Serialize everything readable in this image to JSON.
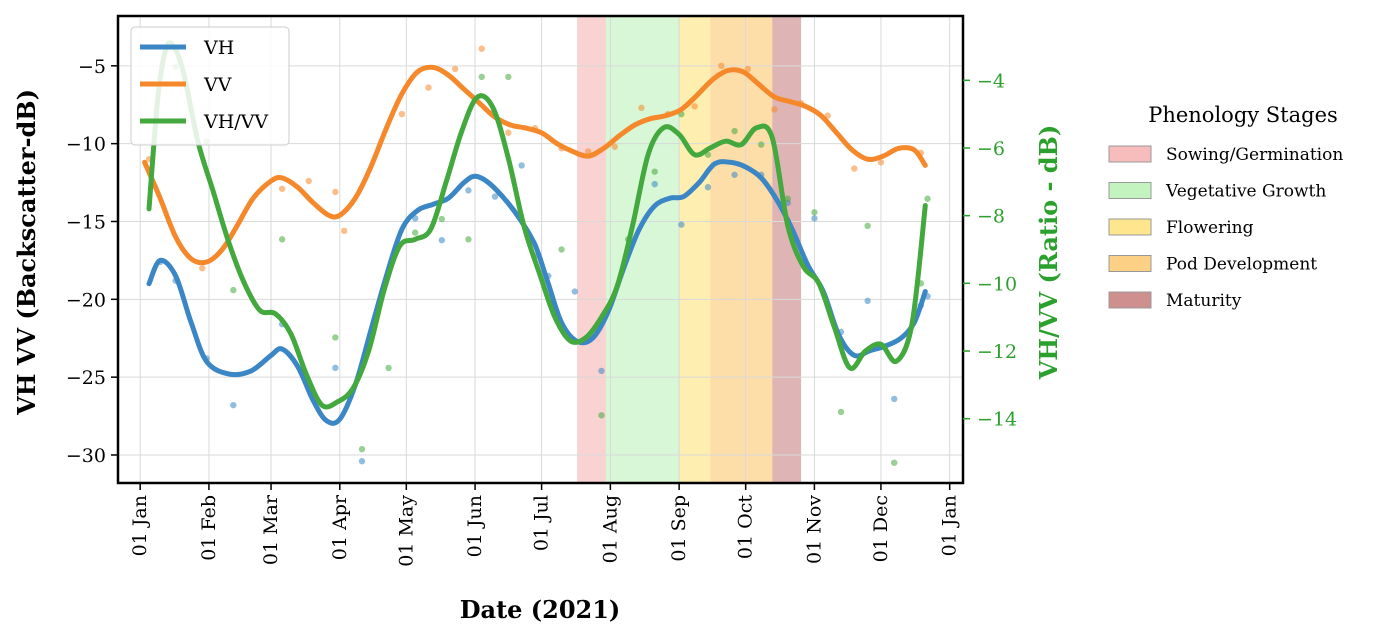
{
  "chart_data": {
    "type": "line",
    "xlabel": "Date (2021)",
    "ylabel_left": "VH VV (Backscatter-dB)",
    "ylabel_right": "VH/VV (Ratio - dB)",
    "x_tick_labels": [
      "01 Jan",
      "01 Feb",
      "01 Mar",
      "01 Apr",
      "01 May",
      "01 Jun",
      "01 Jul",
      "01 Aug",
      "01 Sep",
      "01 Oct",
      "01 Nov",
      "01 Dec",
      "01 Jan"
    ],
    "x_tick_dates": [
      "2021-01-01",
      "2021-02-01",
      "2021-03-01",
      "2021-04-01",
      "2021-05-01",
      "2021-06-01",
      "2021-07-01",
      "2021-08-01",
      "2021-09-01",
      "2021-10-01",
      "2021-11-01",
      "2021-12-01",
      "2022-01-01"
    ],
    "xlim": [
      "2020-12-22",
      "2022-01-07"
    ],
    "ylim_left": [
      -31.8,
      -1.8
    ],
    "yticks_left": [
      -30,
      -25,
      -20,
      -15,
      -10,
      -5
    ],
    "ylim_right": [
      -15.9,
      -2.1
    ],
    "yticks_right": [
      -14,
      -12,
      -10,
      -8,
      -6,
      -4
    ],
    "grid": true,
    "legend_position": "top-left",
    "series": [
      {
        "name": "VH",
        "axis": "left",
        "color": "#3b86c4",
        "smooth": [
          [
            "2021-01-05",
            -19.0
          ],
          [
            "2021-01-10",
            -17.5
          ],
          [
            "2021-01-17",
            -18.5
          ],
          [
            "2021-01-24",
            -21.5
          ],
          [
            "2021-01-31",
            -24.0
          ],
          [
            "2021-02-10",
            -24.8
          ],
          [
            "2021-02-20",
            -24.6
          ],
          [
            "2021-03-01",
            -23.6
          ],
          [
            "2021-03-06",
            -23.2
          ],
          [
            "2021-03-13",
            -24.3
          ],
          [
            "2021-03-20",
            -26.5
          ],
          [
            "2021-03-26",
            -27.8
          ],
          [
            "2021-04-01",
            -27.7
          ],
          [
            "2021-04-08",
            -25.5
          ],
          [
            "2021-04-15",
            -22.0
          ],
          [
            "2021-04-22",
            -18.5
          ],
          [
            "2021-04-29",
            -15.5
          ],
          [
            "2021-05-06",
            -14.3
          ],
          [
            "2021-05-13",
            -13.9
          ],
          [
            "2021-05-20",
            -13.5
          ],
          [
            "2021-05-27",
            -12.5
          ],
          [
            "2021-06-01",
            -12.1
          ],
          [
            "2021-06-07",
            -12.5
          ],
          [
            "2021-06-14",
            -13.5
          ],
          [
            "2021-06-21",
            -14.8
          ],
          [
            "2021-06-28",
            -16.5
          ],
          [
            "2021-07-04",
            -19.0
          ],
          [
            "2021-07-10",
            -21.5
          ],
          [
            "2021-07-17",
            -22.7
          ],
          [
            "2021-07-24",
            -22.5
          ],
          [
            "2021-07-31",
            -20.8
          ],
          [
            "2021-08-07",
            -18.0
          ],
          [
            "2021-08-14",
            -15.5
          ],
          [
            "2021-08-21",
            -14.0
          ],
          [
            "2021-08-28",
            -13.5
          ],
          [
            "2021-09-03",
            -13.4
          ],
          [
            "2021-09-10",
            -12.5
          ],
          [
            "2021-09-17",
            -11.3
          ],
          [
            "2021-09-24",
            -11.2
          ],
          [
            "2021-10-01",
            -11.5
          ],
          [
            "2021-10-08",
            -12.2
          ],
          [
            "2021-10-15",
            -13.6
          ],
          [
            "2021-10-22",
            -15.5
          ],
          [
            "2021-10-29",
            -17.8
          ],
          [
            "2021-11-05",
            -19.5
          ],
          [
            "2021-11-12",
            -22.3
          ],
          [
            "2021-11-19",
            -23.6
          ],
          [
            "2021-11-26",
            -23.3
          ],
          [
            "2021-12-03",
            -23.0
          ],
          [
            "2021-12-10",
            -22.5
          ],
          [
            "2021-12-16",
            -21.5
          ],
          [
            "2021-12-21",
            -19.5
          ]
        ],
        "points": [
          [
            "2021-01-10",
            -17.6
          ],
          [
            "2021-01-17",
            -18.8
          ],
          [
            "2021-01-31",
            -23.8
          ],
          [
            "2021-02-12",
            -26.8
          ],
          [
            "2021-03-06",
            -21.6
          ],
          [
            "2021-03-18",
            -25.6
          ],
          [
            "2021-03-30",
            -24.4
          ],
          [
            "2021-04-11",
            -30.4
          ],
          [
            "2021-05-05",
            -14.8
          ],
          [
            "2021-05-17",
            -16.2
          ],
          [
            "2021-05-29",
            -13.0
          ],
          [
            "2021-06-10",
            -13.4
          ],
          [
            "2021-06-22",
            -11.4
          ],
          [
            "2021-07-04",
            -18.5
          ],
          [
            "2021-07-16",
            -19.5
          ],
          [
            "2021-07-28",
            -24.6
          ],
          [
            "2021-08-09",
            -17.0
          ],
          [
            "2021-08-21",
            -12.6
          ],
          [
            "2021-09-02",
            -15.2
          ],
          [
            "2021-09-14",
            -12.8
          ],
          [
            "2021-09-26",
            -12.0
          ],
          [
            "2021-10-08",
            -12.0
          ],
          [
            "2021-10-20",
            -13.8
          ],
          [
            "2021-11-01",
            -14.8
          ],
          [
            "2021-11-13",
            -22.1
          ],
          [
            "2021-11-25",
            -20.1
          ],
          [
            "2021-12-07",
            -26.4
          ],
          [
            "2021-12-19",
            -20.4
          ],
          [
            "2021-12-22",
            -19.8
          ]
        ]
      },
      {
        "name": "VV",
        "axis": "left",
        "color": "#f5882a",
        "smooth": [
          [
            "2021-01-03",
            -11.2
          ],
          [
            "2021-01-10",
            -13.5
          ],
          [
            "2021-01-17",
            -16.0
          ],
          [
            "2021-01-24",
            -17.4
          ],
          [
            "2021-01-31",
            -17.6
          ],
          [
            "2021-02-07",
            -16.8
          ],
          [
            "2021-02-14",
            -15.2
          ],
          [
            "2021-02-21",
            -13.5
          ],
          [
            "2021-03-01",
            -12.4
          ],
          [
            "2021-03-06",
            -12.2
          ],
          [
            "2021-03-13",
            -12.8
          ],
          [
            "2021-03-20",
            -13.8
          ],
          [
            "2021-03-27",
            -14.6
          ],
          [
            "2021-04-01",
            -14.6
          ],
          [
            "2021-04-08",
            -13.5
          ],
          [
            "2021-04-15",
            -11.5
          ],
          [
            "2021-04-22",
            -9.0
          ],
          [
            "2021-04-29",
            -6.8
          ],
          [
            "2021-05-06",
            -5.4
          ],
          [
            "2021-05-13",
            -5.1
          ],
          [
            "2021-05-20",
            -5.6
          ],
          [
            "2021-05-27",
            -6.5
          ],
          [
            "2021-06-03",
            -7.4
          ],
          [
            "2021-06-10",
            -8.3
          ],
          [
            "2021-06-17",
            -8.8
          ],
          [
            "2021-06-24",
            -9.0
          ],
          [
            "2021-07-01",
            -9.3
          ],
          [
            "2021-07-08",
            -10.0
          ],
          [
            "2021-07-15",
            -10.5
          ],
          [
            "2021-07-22",
            -10.8
          ],
          [
            "2021-07-29",
            -10.3
          ],
          [
            "2021-08-05",
            -9.5
          ],
          [
            "2021-08-12",
            -8.8
          ],
          [
            "2021-08-19",
            -8.4
          ],
          [
            "2021-08-26",
            -8.2
          ],
          [
            "2021-09-02",
            -7.8
          ],
          [
            "2021-09-09",
            -6.9
          ],
          [
            "2021-09-16",
            -5.9
          ],
          [
            "2021-09-23",
            -5.3
          ],
          [
            "2021-09-30",
            -5.4
          ],
          [
            "2021-10-07",
            -6.2
          ],
          [
            "2021-10-14",
            -7.0
          ],
          [
            "2021-10-21",
            -7.3
          ],
          [
            "2021-10-28",
            -7.6
          ],
          [
            "2021-11-04",
            -8.2
          ],
          [
            "2021-11-11",
            -9.3
          ],
          [
            "2021-11-18",
            -10.4
          ],
          [
            "2021-11-25",
            -11.0
          ],
          [
            "2021-12-02",
            -10.8
          ],
          [
            "2021-12-09",
            -10.3
          ],
          [
            "2021-12-16",
            -10.4
          ],
          [
            "2021-12-21",
            -11.4
          ]
        ],
        "points": [
          [
            "2021-01-05",
            -11.0
          ],
          [
            "2021-01-29",
            -18.0
          ],
          [
            "2021-03-06",
            -12.9
          ],
          [
            "2021-03-18",
            -12.4
          ],
          [
            "2021-03-30",
            -13.1
          ],
          [
            "2021-04-03",
            -15.6
          ],
          [
            "2021-04-29",
            -8.1
          ],
          [
            "2021-05-11",
            -6.4
          ],
          [
            "2021-05-23",
            -5.2
          ],
          [
            "2021-06-04",
            -3.9
          ],
          [
            "2021-06-16",
            -9.3
          ],
          [
            "2021-06-28",
            -9.0
          ],
          [
            "2021-07-10",
            -10.3
          ],
          [
            "2021-07-22",
            -10.5
          ],
          [
            "2021-08-03",
            -10.2
          ],
          [
            "2021-08-15",
            -7.7
          ],
          [
            "2021-08-27",
            -8.1
          ],
          [
            "2021-09-08",
            -7.6
          ],
          [
            "2021-09-20",
            -5.0
          ],
          [
            "2021-10-02",
            -5.2
          ],
          [
            "2021-10-14",
            -7.8
          ],
          [
            "2021-10-26",
            -7.4
          ],
          [
            "2021-11-07",
            -8.2
          ],
          [
            "2021-11-19",
            -11.6
          ],
          [
            "2021-12-01",
            -11.2
          ],
          [
            "2021-12-19",
            -10.6
          ]
        ]
      },
      {
        "name": "VH/VV",
        "axis": "right",
        "color": "#43a83d",
        "smooth": [
          [
            "2021-01-05",
            -7.8
          ],
          [
            "2021-01-09",
            -4.5
          ],
          [
            "2021-01-13",
            -3.0
          ],
          [
            "2021-01-17",
            -3.1
          ],
          [
            "2021-01-21",
            -3.9
          ],
          [
            "2021-01-27",
            -5.8
          ],
          [
            "2021-02-03",
            -7.3
          ],
          [
            "2021-02-10",
            -8.8
          ],
          [
            "2021-02-17",
            -10.0
          ],
          [
            "2021-02-24",
            -10.8
          ],
          [
            "2021-03-03",
            -10.9
          ],
          [
            "2021-03-10",
            -11.5
          ],
          [
            "2021-03-17",
            -12.7
          ],
          [
            "2021-03-24",
            -13.6
          ],
          [
            "2021-03-31",
            -13.5
          ],
          [
            "2021-04-07",
            -13.1
          ],
          [
            "2021-04-14",
            -12.0
          ],
          [
            "2021-04-21",
            -10.2
          ],
          [
            "2021-04-28",
            -8.9
          ],
          [
            "2021-05-05",
            -8.7
          ],
          [
            "2021-05-12",
            -8.4
          ],
          [
            "2021-05-19",
            -7.0
          ],
          [
            "2021-05-26",
            -5.5
          ],
          [
            "2021-06-02",
            -4.5
          ],
          [
            "2021-06-09",
            -4.8
          ],
          [
            "2021-06-16",
            -6.3
          ],
          [
            "2021-06-23",
            -8.3
          ],
          [
            "2021-06-30",
            -9.7
          ],
          [
            "2021-07-07",
            -11.0
          ],
          [
            "2021-07-14",
            -11.7
          ],
          [
            "2021-07-21",
            -11.6
          ],
          [
            "2021-07-28",
            -11.0
          ],
          [
            "2021-08-04",
            -10.1
          ],
          [
            "2021-08-11",
            -8.3
          ],
          [
            "2021-08-18",
            -6.2
          ],
          [
            "2021-08-25",
            -5.4
          ],
          [
            "2021-09-01",
            -5.6
          ],
          [
            "2021-09-08",
            -6.2
          ],
          [
            "2021-09-15",
            -6.0
          ],
          [
            "2021-09-22",
            -5.8
          ],
          [
            "2021-09-29",
            -5.9
          ],
          [
            "2021-10-06",
            -5.4
          ],
          [
            "2021-10-13",
            -5.7
          ],
          [
            "2021-10-20",
            -8.3
          ],
          [
            "2021-10-27",
            -9.5
          ],
          [
            "2021-11-03",
            -10.0
          ],
          [
            "2021-11-10",
            -11.3
          ],
          [
            "2021-11-17",
            -12.5
          ],
          [
            "2021-11-24",
            -12.0
          ],
          [
            "2021-12-01",
            -11.8
          ],
          [
            "2021-12-08",
            -12.3
          ],
          [
            "2021-12-15",
            -11.2
          ],
          [
            "2021-12-21",
            -7.7
          ]
        ],
        "points": [
          [
            "2021-01-17",
            -3.6
          ],
          [
            "2021-01-31",
            -5.8
          ],
          [
            "2021-02-12",
            -10.2
          ],
          [
            "2021-03-06",
            -8.7
          ],
          [
            "2021-03-18",
            -13.1
          ],
          [
            "2021-03-30",
            -11.6
          ],
          [
            "2021-04-11",
            -14.9
          ],
          [
            "2021-04-23",
            -12.5
          ],
          [
            "2021-05-05",
            -8.5
          ],
          [
            "2021-05-17",
            -8.1
          ],
          [
            "2021-05-29",
            -8.7
          ],
          [
            "2021-06-04",
            -3.9
          ],
          [
            "2021-06-16",
            -3.9
          ],
          [
            "2021-06-28",
            -9.2
          ],
          [
            "2021-07-10",
            -9.0
          ],
          [
            "2021-07-28",
            -13.9
          ],
          [
            "2021-08-09",
            -8.7
          ],
          [
            "2021-08-21",
            -6.7
          ],
          [
            "2021-09-02",
            -5.0
          ],
          [
            "2021-09-14",
            -6.2
          ],
          [
            "2021-09-26",
            -5.5
          ],
          [
            "2021-10-08",
            -5.9
          ],
          [
            "2021-10-20",
            -7.5
          ],
          [
            "2021-11-01",
            -7.9
          ],
          [
            "2021-11-13",
            -13.8
          ],
          [
            "2021-11-25",
            -8.3
          ],
          [
            "2021-12-07",
            -15.3
          ],
          [
            "2021-12-19",
            -10.0
          ],
          [
            "2021-12-22",
            -7.5
          ]
        ]
      }
    ],
    "phenology_title": "Phenology Stages",
    "phenology": [
      {
        "label": "Sowing/Germination",
        "start": "2021-07-17",
        "end": "2021-07-30",
        "color": "#f4a6a6",
        "opacity": 0.5
      },
      {
        "label": "Vegetative Growth",
        "start": "2021-07-30",
        "end": "2021-09-01",
        "color": "#a9eea4",
        "opacity": 0.45
      },
      {
        "label": "Flowering",
        "start": "2021-09-01",
        "end": "2021-09-15",
        "color": "#fde27a",
        "opacity": 0.6
      },
      {
        "label": "Pod Development",
        "start": "2021-09-15",
        "end": "2021-10-13",
        "color": "#fbc870",
        "opacity": 0.6
      },
      {
        "label": "Maturity",
        "start": "2021-10-13",
        "end": "2021-10-26",
        "color": "#c06a6a",
        "opacity": 0.5
      }
    ]
  }
}
